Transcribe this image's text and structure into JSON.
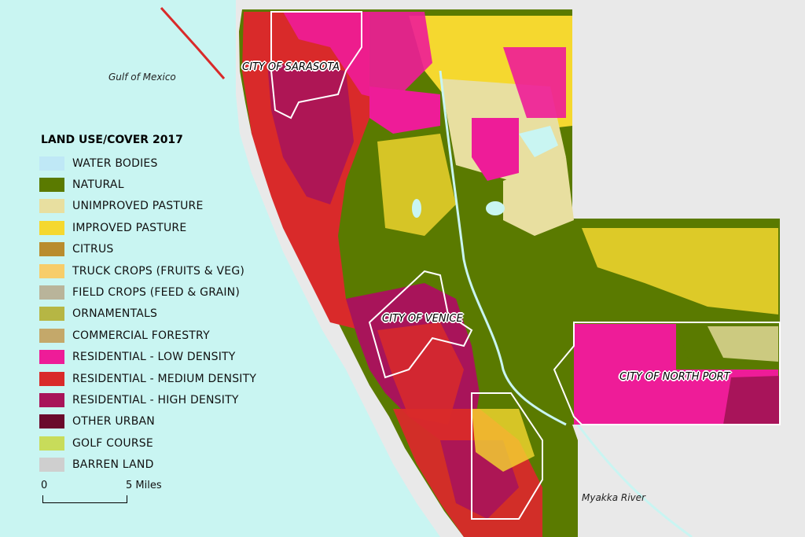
{
  "map": {
    "labels": {
      "gulf": "Gulf of Mexico",
      "river": "Myakka River",
      "sarasota": "CITY OF SARASOTA",
      "venice": "CITY OF VENICE",
      "north_port": "CITY OF NORTH PORT"
    },
    "colors": {
      "water": "#c9f5f2",
      "land_outside": "#e9e9e9",
      "natural": "#5a7a00"
    }
  },
  "legend": {
    "title": "LAND USE/COVER 2017",
    "items": [
      {
        "label": "WATER BODIES",
        "color": "#bfe8f6"
      },
      {
        "label": "NATURAL",
        "color": "#5a7a00"
      },
      {
        "label": "UNIMPROVED PASTURE",
        "color": "#e8dfa0"
      },
      {
        "label": "IMPROVED PASTURE",
        "color": "#f5d82f"
      },
      {
        "label": "CITRUS",
        "color": "#b98c2e"
      },
      {
        "label": "TRUCK CROPS (FRUITS & VEG)",
        "color": "#f7cd6a"
      },
      {
        "label": "FIELD CROPS (FEED & GRAIN)",
        "color": "#b9b49a"
      },
      {
        "label": "ORNAMENTALS",
        "color": "#b6b644"
      },
      {
        "label": "COMMERCIAL FORESTRY",
        "color": "#c4a86a"
      },
      {
        "label": "RESIDENTIAL - LOW DENSITY",
        "color": "#ee1c98"
      },
      {
        "label": "RESIDENTIAL - MEDIUM DENSITY",
        "color": "#d92a2a"
      },
      {
        "label": "RESIDENTIAL - HIGH DENSITY",
        "color": "#a8145a"
      },
      {
        "label": "OTHER URBAN",
        "color": "#6a0a2c"
      },
      {
        "label": "GOLF COURSE",
        "color": "#c8dc5a"
      },
      {
        "label": "BARREN LAND",
        "color": "#cfcfcf"
      }
    ]
  },
  "scale": {
    "start": "0",
    "end": "5 Miles"
  }
}
